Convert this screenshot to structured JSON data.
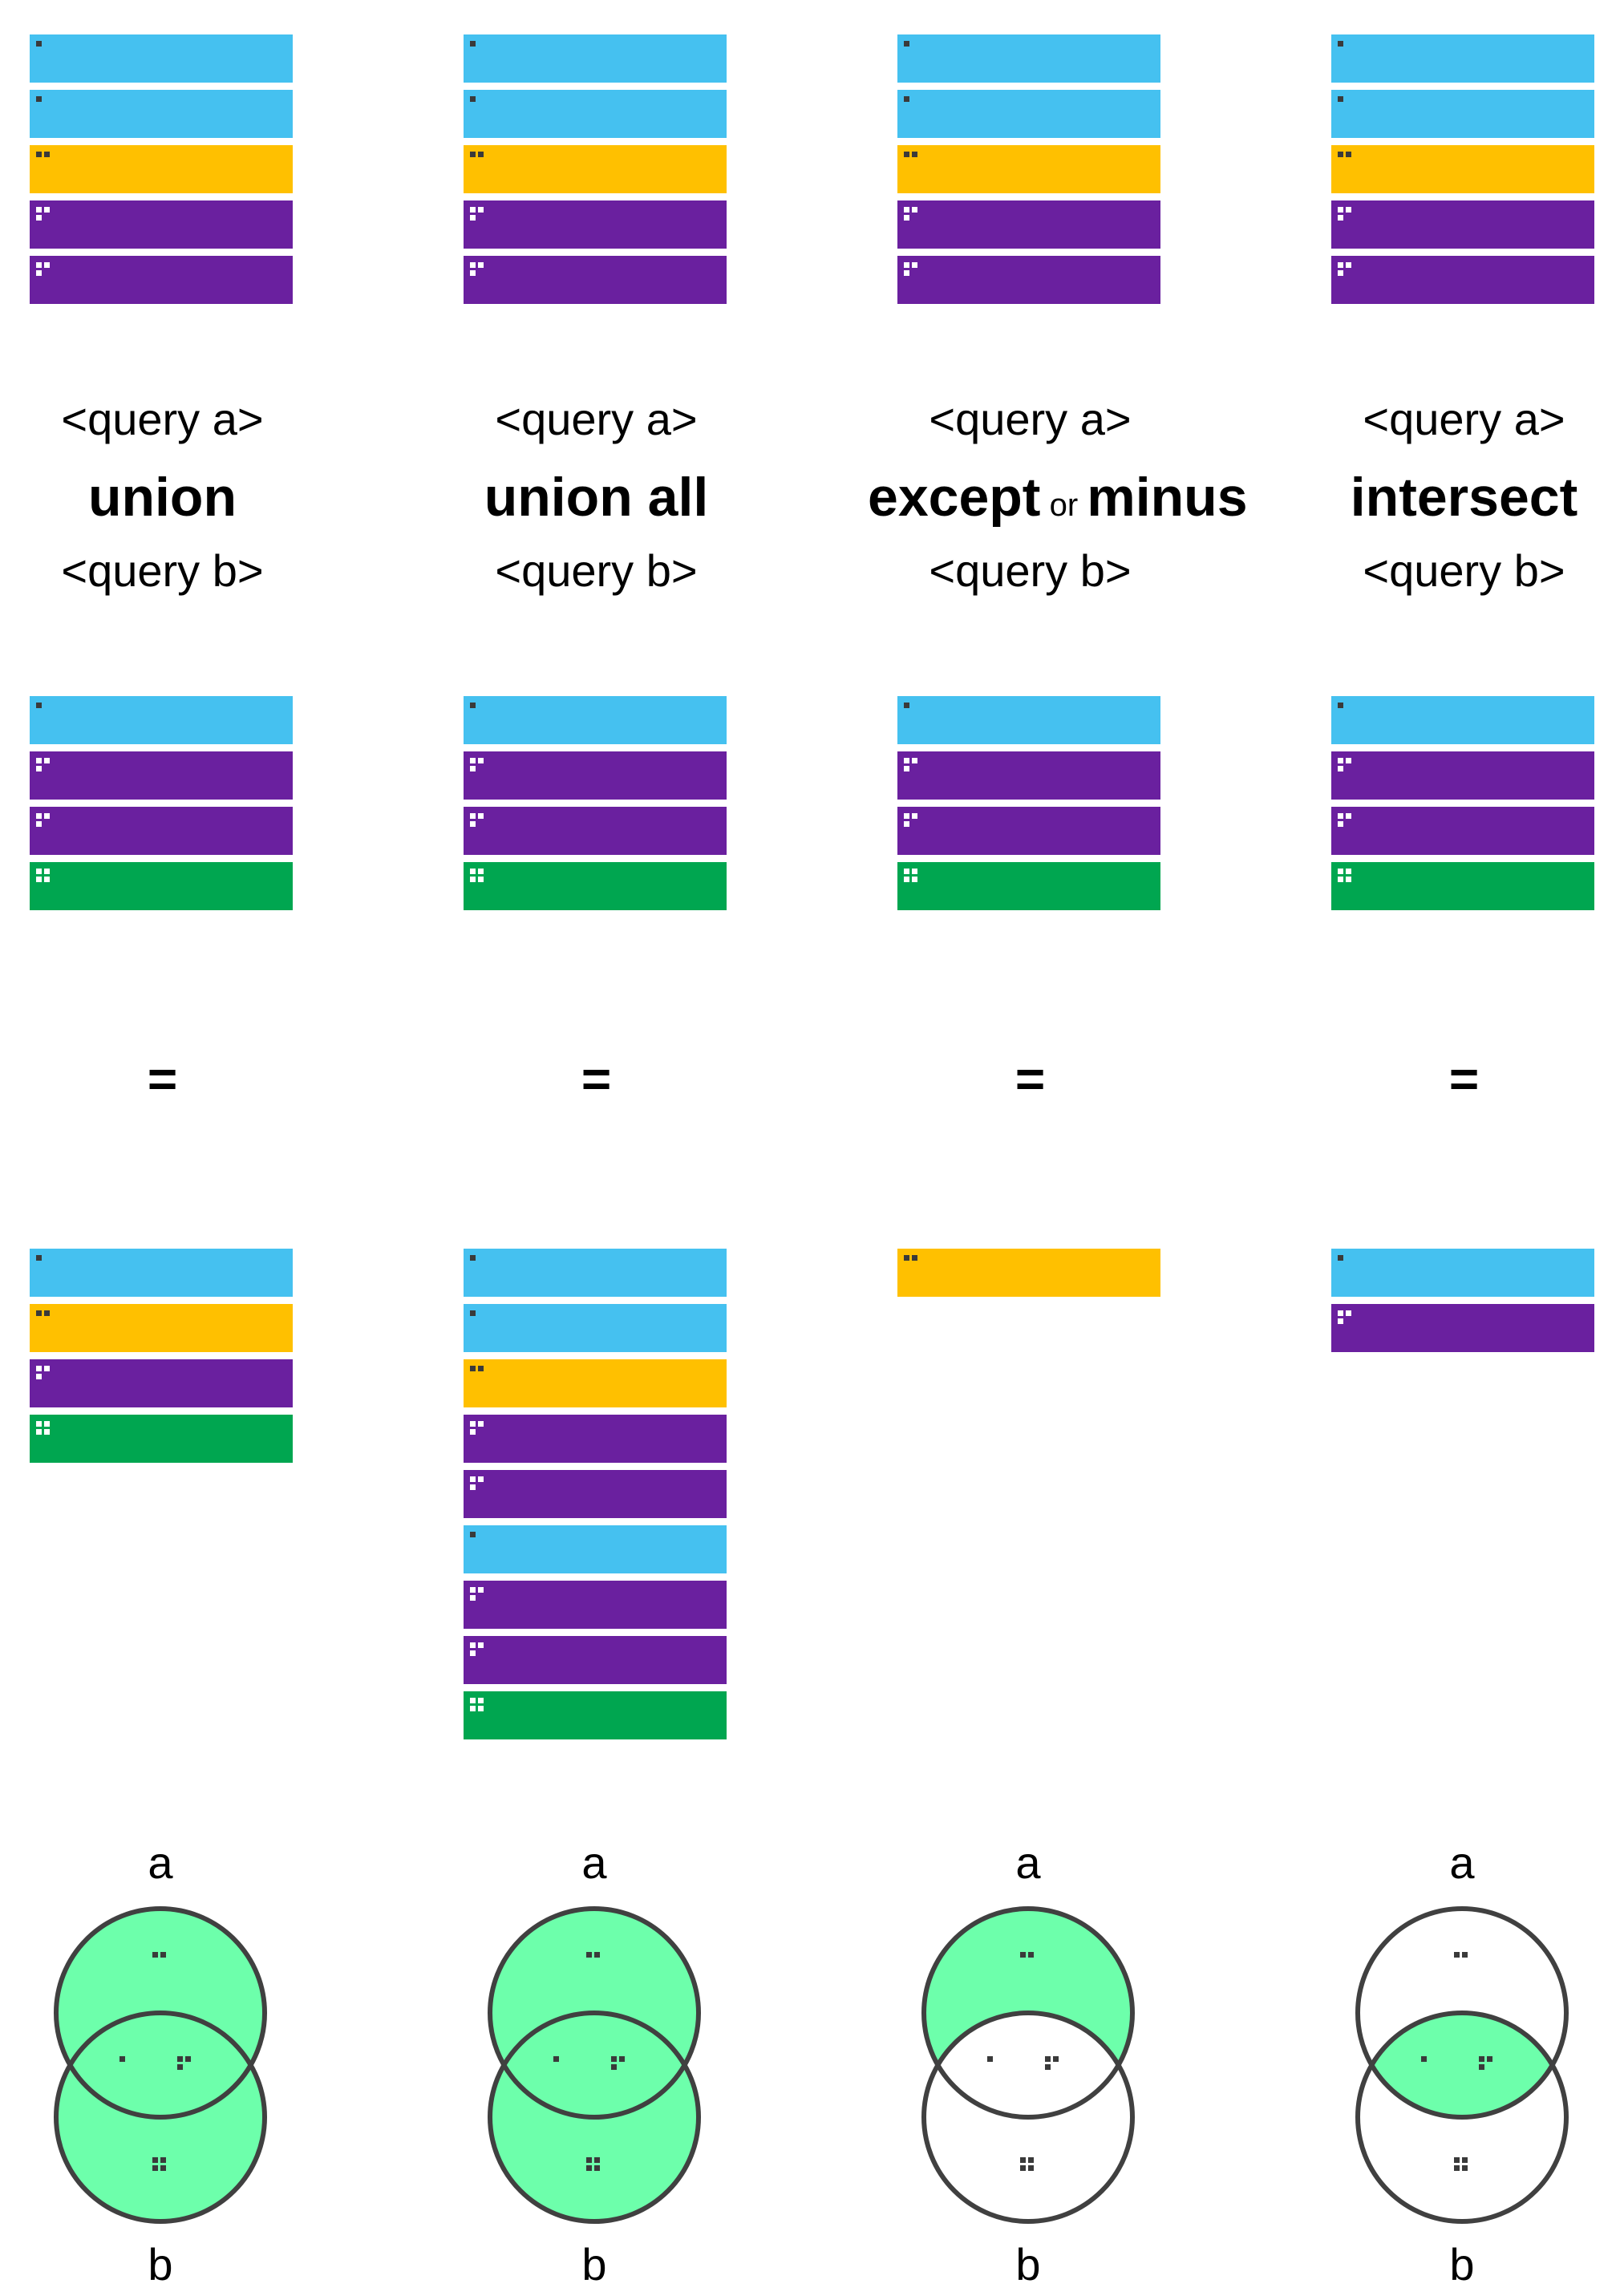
{
  "colors": {
    "blue": "#45c1f0",
    "yellow": "#ffc000",
    "purple": "#6a209f",
    "green": "#00a650",
    "venn_fill": "#6dffab",
    "venn_stroke": "#404040",
    "dot_dark": "#3a3a3a",
    "dot_light": "#ffffff"
  },
  "stack_a": [
    "one-dot-blue",
    "one-dot-blue",
    "two-dot-yellow",
    "three-dot-purple",
    "three-dot-purple"
  ],
  "stack_b": [
    "one-dot-blue",
    "three-dot-purple",
    "three-dot-purple",
    "four-dot-green"
  ],
  "text": {
    "query_a": "<query a>",
    "query_b": "<query b>",
    "equals": "=",
    "venn_a": "a",
    "venn_b": "b"
  },
  "columns": [
    {
      "operator": "union",
      "operator_alt": "",
      "connector": "",
      "result": [
        "one-dot-blue",
        "two-dot-yellow",
        "three-dot-purple",
        "four-dot-green"
      ],
      "venn_highlight": "union"
    },
    {
      "operator": "union all",
      "operator_alt": "",
      "connector": "",
      "result": [
        "one-dot-blue",
        "one-dot-blue",
        "two-dot-yellow",
        "three-dot-purple",
        "three-dot-purple",
        "one-dot-blue",
        "three-dot-purple",
        "three-dot-purple",
        "four-dot-green"
      ],
      "venn_highlight": "union"
    },
    {
      "operator": "except",
      "operator_alt": "minus",
      "connector": "or",
      "result": [
        "two-dot-yellow"
      ],
      "venn_highlight": "a-minus-b"
    },
    {
      "operator": "intersect",
      "operator_alt": "",
      "connector": "",
      "result": [
        "one-dot-blue",
        "three-dot-purple"
      ],
      "venn_highlight": "intersection"
    }
  ]
}
